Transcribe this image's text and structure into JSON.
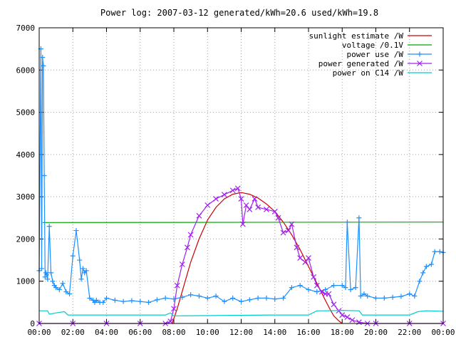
{
  "chart_data": {
    "type": "line",
    "title": "Power log: 2007-03-12 generated/kWh=20.6 used/kWh=19.8",
    "xlabel": "",
    "ylabel": "",
    "x_unit": "hours of day",
    "xlim": [
      0,
      24
    ],
    "ylim": [
      0,
      7000
    ],
    "grid": true,
    "legend_position": "top-right",
    "x_ticks": [
      {
        "value": 0,
        "label": "00:00"
      },
      {
        "value": 2,
        "label": "02:00"
      },
      {
        "value": 4,
        "label": "04:00"
      },
      {
        "value": 6,
        "label": "06:00"
      },
      {
        "value": 8,
        "label": "08:00"
      },
      {
        "value": 10,
        "label": "10:00"
      },
      {
        "value": 12,
        "label": "12:00"
      },
      {
        "value": 14,
        "label": "14:00"
      },
      {
        "value": 16,
        "label": "16:00"
      },
      {
        "value": 18,
        "label": "18:00"
      },
      {
        "value": 20,
        "label": "20:00"
      },
      {
        "value": 22,
        "label": "22:00"
      },
      {
        "value": 24,
        "label": "00:00"
      }
    ],
    "y_ticks": [
      {
        "value": 0,
        "label": "0"
      },
      {
        "value": 1000,
        "label": "1000"
      },
      {
        "value": 2000,
        "label": "2000"
      },
      {
        "value": 3000,
        "label": "3000"
      },
      {
        "value": 4000,
        "label": "4000"
      },
      {
        "value": 5000,
        "label": "5000"
      },
      {
        "value": 6000,
        "label": "6000"
      },
      {
        "value": 7000,
        "label": "7000"
      }
    ],
    "series": [
      {
        "name": "sunlight estimate /W",
        "color": "#cc0000",
        "style": "line",
        "x": [
          7.9,
          8.2,
          8.6,
          9.0,
          9.5,
          10.0,
          10.5,
          11.0,
          11.5,
          12.0,
          12.5,
          13.0,
          13.5,
          14.0,
          14.5,
          15.0,
          15.5,
          16.0,
          16.5,
          17.0,
          17.3,
          17.5,
          17.8,
          18.0
        ],
        "y": [
          0,
          350,
          900,
          1450,
          2000,
          2450,
          2750,
          2950,
          3060,
          3100,
          3060,
          2970,
          2830,
          2650,
          2400,
          2100,
          1750,
          1350,
          950,
          550,
          320,
          180,
          60,
          0
        ]
      },
      {
        "name": "voltage /0.1V",
        "color": "#00aa00",
        "style": "line",
        "x": [
          0.2,
          24
        ],
        "y": [
          2390,
          2400
        ]
      },
      {
        "name": "power use /W",
        "color": "#1e90ff",
        "style": "linespoints",
        "marker": "plus",
        "x": [
          0.0,
          0.1,
          0.15,
          0.2,
          0.25,
          0.3,
          0.35,
          0.4,
          0.45,
          0.5,
          0.6,
          0.7,
          0.8,
          0.9,
          1.0,
          1.2,
          1.4,
          1.6,
          1.8,
          2.0,
          2.2,
          2.4,
          2.5,
          2.6,
          2.7,
          2.8,
          3.0,
          3.2,
          3.3,
          3.4,
          3.6,
          3.8,
          4.0,
          4.5,
          5.0,
          5.5,
          6.0,
          6.5,
          7.0,
          7.5,
          8.0,
          8.5,
          9.0,
          9.5,
          10.0,
          10.5,
          11.0,
          11.5,
          12.0,
          12.5,
          13.0,
          13.5,
          14.0,
          14.5,
          15.0,
          15.5,
          16.0,
          16.5,
          17.0,
          17.5,
          18.0,
          18.2,
          18.3,
          18.5,
          18.8,
          19.0,
          19.1,
          19.3,
          19.5,
          20.0,
          20.5,
          21.0,
          21.5,
          22.0,
          22.3,
          22.6,
          22.8,
          23.0,
          23.3,
          23.5,
          23.8,
          24.0
        ],
        "y": [
          1250,
          6500,
          1300,
          6300,
          6100,
          3500,
          1100,
          1200,
          1150,
          1050,
          2300,
          1200,
          1000,
          900,
          850,
          800,
          950,
          750,
          700,
          1600,
          2200,
          1500,
          1050,
          1300,
          1200,
          1250,
          600,
          550,
          500,
          550,
          500,
          500,
          600,
          550,
          520,
          540,
          520,
          500,
          560,
          600,
          580,
          620,
          680,
          650,
          600,
          650,
          520,
          600,
          520,
          560,
          600,
          600,
          580,
          600,
          850,
          900,
          800,
          750,
          800,
          900,
          900,
          850,
          2400,
          800,
          850,
          2500,
          650,
          700,
          650,
          600,
          600,
          620,
          640,
          700,
          650,
          1000,
          1200,
          1350,
          1400,
          1700,
          1700,
          1680
        ]
      },
      {
        "name": "power generated /W",
        "color": "#a020f0",
        "style": "linespoints",
        "marker": "cross",
        "x": [
          0.0,
          2.0,
          4.0,
          6.0,
          7.5,
          7.8,
          8.0,
          8.2,
          8.5,
          8.8,
          9.0,
          9.5,
          10.0,
          10.5,
          11.0,
          11.5,
          11.8,
          12.0,
          12.1,
          12.3,
          12.5,
          12.8,
          13.0,
          13.5,
          14.0,
          14.2,
          14.5,
          14.8,
          15.0,
          15.3,
          15.5,
          15.8,
          16.0,
          16.3,
          16.5,
          16.8,
          17.0,
          17.2,
          17.5,
          17.8,
          18.0,
          18.3,
          18.6,
          19.0,
          19.5,
          20.0,
          22.0,
          24.0
        ],
        "y": [
          0,
          0,
          0,
          0,
          0,
          50,
          350,
          900,
          1400,
          1800,
          2100,
          2550,
          2800,
          2950,
          3050,
          3150,
          3200,
          2950,
          2350,
          2800,
          2700,
          2950,
          2750,
          2700,
          2650,
          2500,
          2150,
          2200,
          2350,
          1800,
          1550,
          1450,
          1550,
          1100,
          900,
          750,
          700,
          700,
          450,
          300,
          200,
          150,
          80,
          30,
          0,
          0,
          0,
          0
        ]
      },
      {
        "name": "power on C14 /W",
        "color": "#00cccc",
        "style": "line",
        "x": [
          0.0,
          0.5,
          0.6,
          1.0,
          1.5,
          1.7,
          6.0,
          7.5,
          7.8,
          8.0,
          14.0,
          16.0,
          16.5,
          17.0,
          18.0,
          19.0,
          19.2,
          20.0,
          22.0,
          22.5,
          23.0,
          24.0
        ],
        "y": [
          300,
          300,
          220,
          250,
          280,
          200,
          200,
          200,
          250,
          180,
          200,
          200,
          300,
          300,
          310,
          300,
          200,
          200,
          200,
          280,
          300,
          290
        ]
      }
    ]
  }
}
